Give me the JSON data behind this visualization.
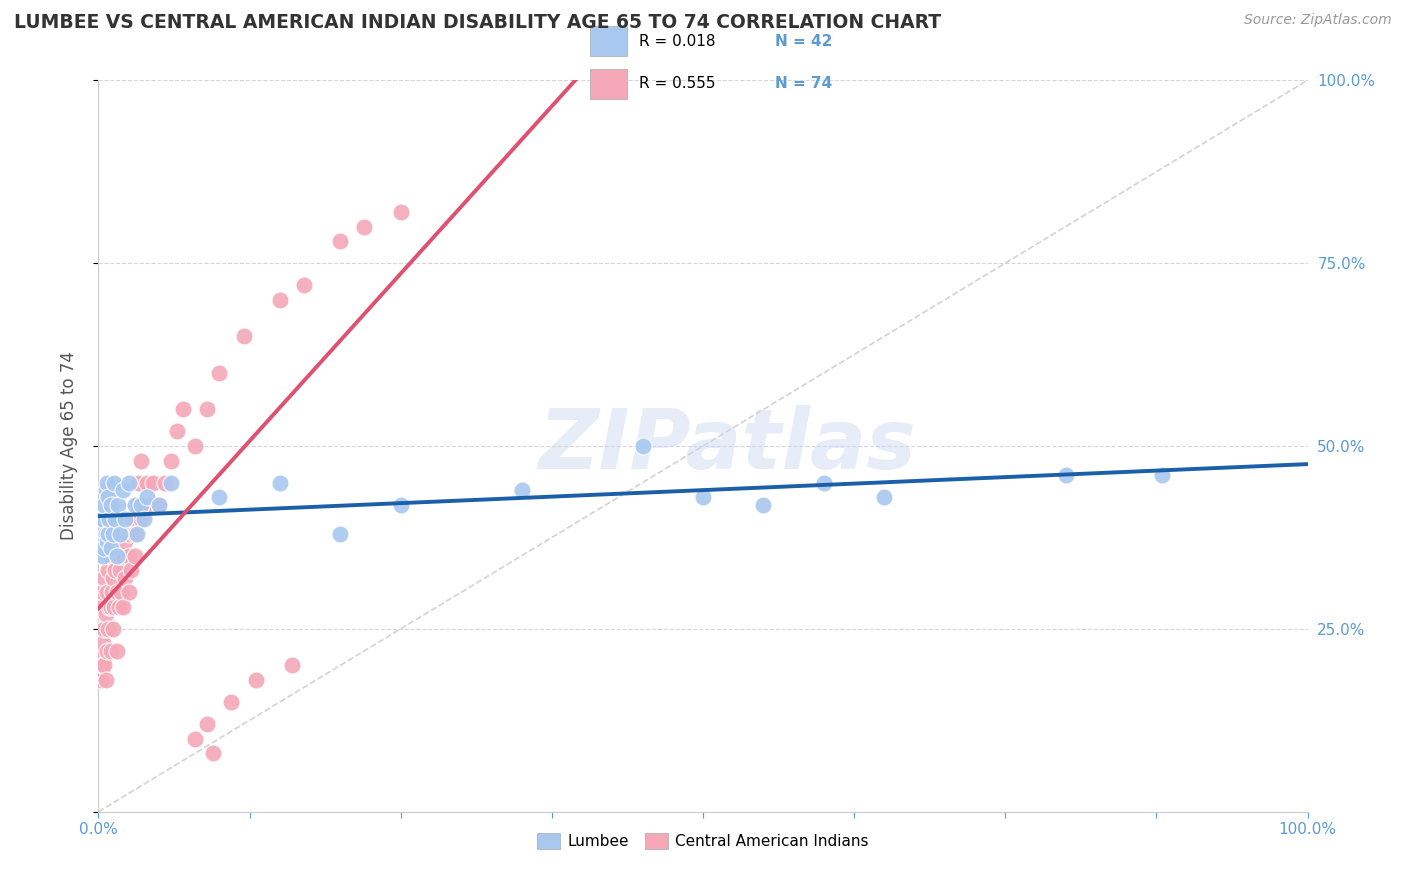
{
  "title": "LUMBEE VS CENTRAL AMERICAN INDIAN DISABILITY AGE 65 TO 74 CORRELATION CHART",
  "source": "Source: ZipAtlas.com",
  "ylabel": "Disability Age 65 to 74",
  "watermark": "ZIPatlas",
  "lumbee_R": 0.018,
  "lumbee_N": 42,
  "central_R": 0.555,
  "central_N": 74,
  "lumbee_color": "#A8C8F0",
  "central_color": "#F4A8B8",
  "lumbee_line_color": "#1A5FA8",
  "central_line_color": "#E05070",
  "ref_line_color": "#C8C8C8",
  "background_color": "#FFFFFF",
  "grid_color": "#CCCCCC",
  "title_color": "#333333",
  "axis_label_color": "#5B9BD5",
  "legend_text_color": "#5B9BD5",
  "lumbee_x": [
    0.002,
    0.003,
    0.004,
    0.005,
    0.005,
    0.006,
    0.006,
    0.007,
    0.007,
    0.008,
    0.008,
    0.009,
    0.01,
    0.01,
    0.012,
    0.013,
    0.014,
    0.015,
    0.016,
    0.018,
    0.02,
    0.022,
    0.025,
    0.03,
    0.032,
    0.035,
    0.038,
    0.04,
    0.05,
    0.06,
    0.1,
    0.15,
    0.2,
    0.25,
    0.35,
    0.45,
    0.5,
    0.55,
    0.6,
    0.65,
    0.8,
    0.88
  ],
  "lumbee_y": [
    0.38,
    0.4,
    0.35,
    0.42,
    0.36,
    0.38,
    0.44,
    0.37,
    0.45,
    0.38,
    0.43,
    0.4,
    0.36,
    0.42,
    0.38,
    0.45,
    0.4,
    0.35,
    0.42,
    0.38,
    0.44,
    0.4,
    0.45,
    0.42,
    0.38,
    0.42,
    0.4,
    0.43,
    0.42,
    0.45,
    0.43,
    0.45,
    0.38,
    0.42,
    0.44,
    0.5,
    0.43,
    0.42,
    0.45,
    0.43,
    0.46,
    0.46
  ],
  "central_x": [
    0.001,
    0.002,
    0.002,
    0.003,
    0.003,
    0.004,
    0.004,
    0.005,
    0.005,
    0.005,
    0.006,
    0.006,
    0.007,
    0.007,
    0.008,
    0.008,
    0.009,
    0.009,
    0.01,
    0.01,
    0.01,
    0.011,
    0.012,
    0.012,
    0.013,
    0.013,
    0.014,
    0.015,
    0.015,
    0.016,
    0.016,
    0.017,
    0.018,
    0.018,
    0.019,
    0.02,
    0.02,
    0.022,
    0.022,
    0.025,
    0.025,
    0.025,
    0.027,
    0.028,
    0.03,
    0.03,
    0.032,
    0.033,
    0.035,
    0.035,
    0.038,
    0.04,
    0.042,
    0.045,
    0.05,
    0.055,
    0.06,
    0.065,
    0.07,
    0.08,
    0.09,
    0.1,
    0.12,
    0.15,
    0.17,
    0.2,
    0.22,
    0.25,
    0.08,
    0.09,
    0.095,
    0.11,
    0.13,
    0.16
  ],
  "central_y": [
    0.22,
    0.18,
    0.25,
    0.2,
    0.28,
    0.23,
    0.3,
    0.2,
    0.25,
    0.32,
    0.18,
    0.27,
    0.22,
    0.3,
    0.25,
    0.33,
    0.28,
    0.35,
    0.22,
    0.28,
    0.35,
    0.3,
    0.25,
    0.32,
    0.28,
    0.38,
    0.33,
    0.22,
    0.3,
    0.35,
    0.4,
    0.28,
    0.33,
    0.35,
    0.3,
    0.28,
    0.35,
    0.32,
    0.37,
    0.3,
    0.35,
    0.38,
    0.33,
    0.4,
    0.35,
    0.38,
    0.42,
    0.45,
    0.4,
    0.48,
    0.42,
    0.45,
    0.42,
    0.45,
    0.42,
    0.45,
    0.48,
    0.52,
    0.55,
    0.5,
    0.55,
    0.6,
    0.65,
    0.7,
    0.72,
    0.78,
    0.8,
    0.82,
    0.1,
    0.12,
    0.08,
    0.15,
    0.18,
    0.2
  ],
  "xlim": [
    0.0,
    1.0
  ],
  "ylim": [
    0.0,
    1.0
  ]
}
